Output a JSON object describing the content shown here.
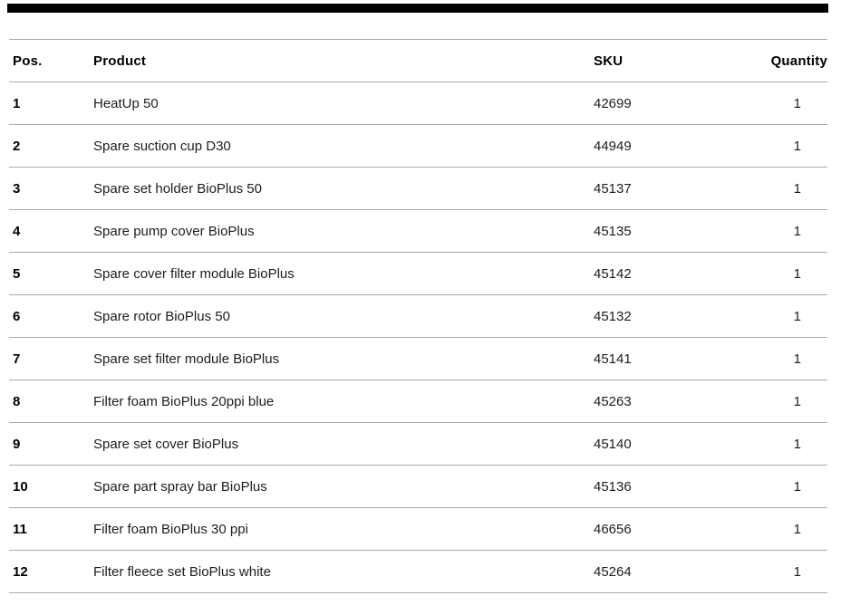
{
  "page": {
    "background_color": "#ffffff",
    "top_bar_color": "#000000",
    "divider_color": "#a2adb4",
    "body_text_color": "#1d1d1b",
    "header_text_color": "#000000"
  },
  "table": {
    "columns": [
      {
        "key": "pos",
        "label": "Pos."
      },
      {
        "key": "product",
        "label": "Product"
      },
      {
        "key": "sku",
        "label": "SKU"
      },
      {
        "key": "quantity",
        "label": "Quantity"
      }
    ],
    "rows": [
      {
        "pos": "1",
        "product": "HeatUp 50",
        "sku": "42699",
        "quantity": "1"
      },
      {
        "pos": "2",
        "product": "Spare suction cup D30",
        "sku": "44949",
        "quantity": "1"
      },
      {
        "pos": "3",
        "product": "Spare set holder BioPlus 50",
        "sku": "45137",
        "quantity": "1"
      },
      {
        "pos": "4",
        "product": "Spare pump cover BioPlus",
        "sku": "45135",
        "quantity": "1"
      },
      {
        "pos": "5",
        "product": "Spare cover filter module BioPlus",
        "sku": "45142",
        "quantity": "1"
      },
      {
        "pos": "6",
        "product": "Spare rotor BioPlus 50",
        "sku": "45132",
        "quantity": "1"
      },
      {
        "pos": "7",
        "product": "Spare set filter module BioPlus",
        "sku": "45141",
        "quantity": "1"
      },
      {
        "pos": "8",
        "product": "Filter foam BioPlus 20ppi blue",
        "sku": "45263",
        "quantity": "1"
      },
      {
        "pos": "9",
        "product": "Spare set cover BioPlus",
        "sku": "45140",
        "quantity": "1"
      },
      {
        "pos": "10",
        "product": "Spare part spray bar BioPlus",
        "sku": "45136",
        "quantity": "1"
      },
      {
        "pos": "11",
        "product": "Filter foam BioPlus 30 ppi",
        "sku": "46656",
        "quantity": "1"
      },
      {
        "pos": "12",
        "product": "Filter fleece set BioPlus white",
        "sku": "45264",
        "quantity": "1"
      }
    ]
  }
}
